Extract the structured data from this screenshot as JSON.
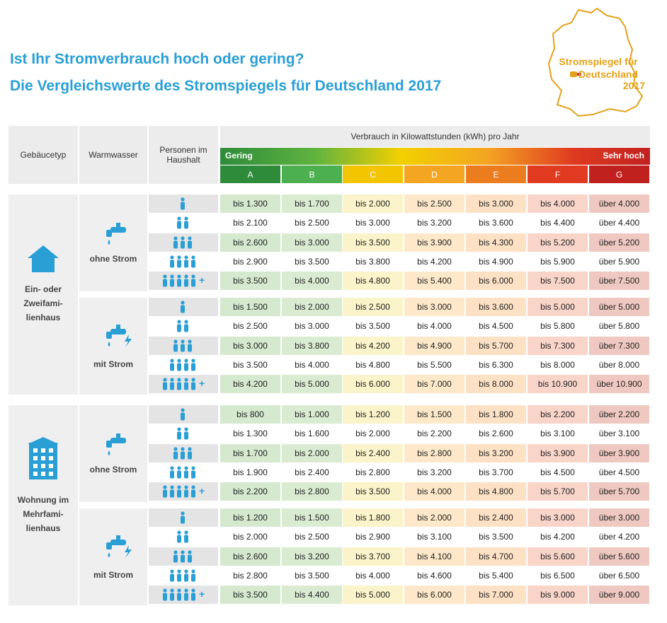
{
  "title": [
    "Ist Ihr Stromverbrauch hoch oder gering?",
    "Die Vergleichswerte des Stromspiegels für Deutschland 2017"
  ],
  "logo": {
    "line1": "Stromspiegel für",
    "line2": "Deutschland",
    "line3": "2017"
  },
  "table": {
    "headers": {
      "building": "Gebäucetyp",
      "water": "Warmwasser",
      "persons": [
        "Personen im",
        "Haushalt"
      ],
      "consumption": "Verbrauch in Kilowattstunden (kWh) pro Jahr",
      "low": "Gering",
      "high": "Sehr hoch",
      "classes": [
        "A",
        "B",
        "C",
        "D",
        "E",
        "F",
        "G"
      ]
    },
    "plus": "+",
    "groups": [
      {
        "building": [
          "Ein- oder",
          "Zweifami-",
          "lienhaus"
        ],
        "sections": [
          {
            "water": "ohne Strom",
            "rows": [
              [
                "bis 1.300",
                "bis 1.700",
                "bis 2.000",
                "bis 2.500",
                "bis 3.000",
                "bis 4.000",
                "über 4.000"
              ],
              [
                "bis 2.100",
                "bis 2.500",
                "bis 3.000",
                "bis 3.200",
                "bis 3.600",
                "bis 4.400",
                "über 4.400"
              ],
              [
                "bis 2.600",
                "bis 3.000",
                "bis 3.500",
                "bis 3.900",
                "bis 4.300",
                "bis 5.200",
                "über 5.200"
              ],
              [
                "bis 2.900",
                "bis 3.500",
                "bis 3.800",
                "bis 4.200",
                "bis 4.900",
                "bis 5.900",
                "über 5.900"
              ],
              [
                "bis 3.500",
                "bis 4.000",
                "bis 4.800",
                "bis 5.400",
                "bis 6.000",
                "bis 7.500",
                "über 7.500"
              ]
            ]
          },
          {
            "water": "mit Strom",
            "rows": [
              [
                "bis 1.500",
                "bis 2.000",
                "bis 2.500",
                "bis 3.000",
                "bis 3.600",
                "bis 5.000",
                "über 5.000"
              ],
              [
                "bis 2.500",
                "bis 3.000",
                "bis 3.500",
                "bis 4.000",
                "bis 4.500",
                "bis 5.800",
                "über 5.800"
              ],
              [
                "bis 3.000",
                "bis 3.800",
                "bis 4.200",
                "bis 4.900",
                "bis 5.700",
                "bis 7.300",
                "über 7.300"
              ],
              [
                "bis 3.500",
                "bis 4.000",
                "bis 4.800",
                "bis 5.500",
                "bis 6.300",
                "bis 8.000",
                "über 8.000"
              ],
              [
                "bis 4.200",
                "bis 5.000",
                "bis 6.000",
                "bis 7.000",
                "bis 8.000",
                "bis 10.900",
                "über 10.900"
              ]
            ]
          }
        ]
      },
      {
        "building": [
          "Wohnung im",
          "Mehrfami-",
          "lienhaus"
        ],
        "sections": [
          {
            "water": "ohne Strom",
            "rows": [
              [
                "bis 800",
                "bis 1.000",
                "bis 1.200",
                "bis 1.500",
                "bis 1.800",
                "bis 2.200",
                "über 2.200"
              ],
              [
                "bis 1.300",
                "bis 1.600",
                "bis 2.000",
                "bis 2.200",
                "bis 2.600",
                "bis 3.100",
                "über 3.100"
              ],
              [
                "bis 1.700",
                "bis 2.000",
                "bis 2.400",
                "bis 2.800",
                "bis 3.200",
                "bis 3.900",
                "über 3.900"
              ],
              [
                "bis 1.900",
                "bis 2.400",
                "bis 2.800",
                "bis 3.200",
                "bis 3.700",
                "bis 4.500",
                "über 4.500"
              ],
              [
                "bis 2.200",
                "bis 2.800",
                "bis 3.500",
                "bis 4.000",
                "bis 4.800",
                "bis 5.700",
                "über 5.700"
              ]
            ]
          },
          {
            "water": "mit Strom",
            "rows": [
              [
                "bis 1.200",
                "bis 1.500",
                "bis 1.800",
                "bis 2.000",
                "bis 2.400",
                "bis 3.000",
                "über 3.000"
              ],
              [
                "bis 2.000",
                "bis 2.500",
                "bis 2.900",
                "bis 3.100",
                "bis 3.500",
                "bis 4.200",
                "über 4.200"
              ],
              [
                "bis 2.600",
                "bis 3.200",
                "bis 3.700",
                "bis 4.100",
                "bis 4.700",
                "bis 5.600",
                "über 5.600"
              ],
              [
                "bis 2.800",
                "bis 3.500",
                "bis 4.000",
                "bis 4.600",
                "bis 5.400",
                "bis 6.500",
                "über 6.500"
              ],
              [
                "bis 3.500",
                "bis 4.400",
                "bis 5.000",
                "bis 6.000",
                "bis 7.000",
                "bis 9.000",
                "über 9.000"
              ]
            ]
          }
        ]
      }
    ]
  }
}
